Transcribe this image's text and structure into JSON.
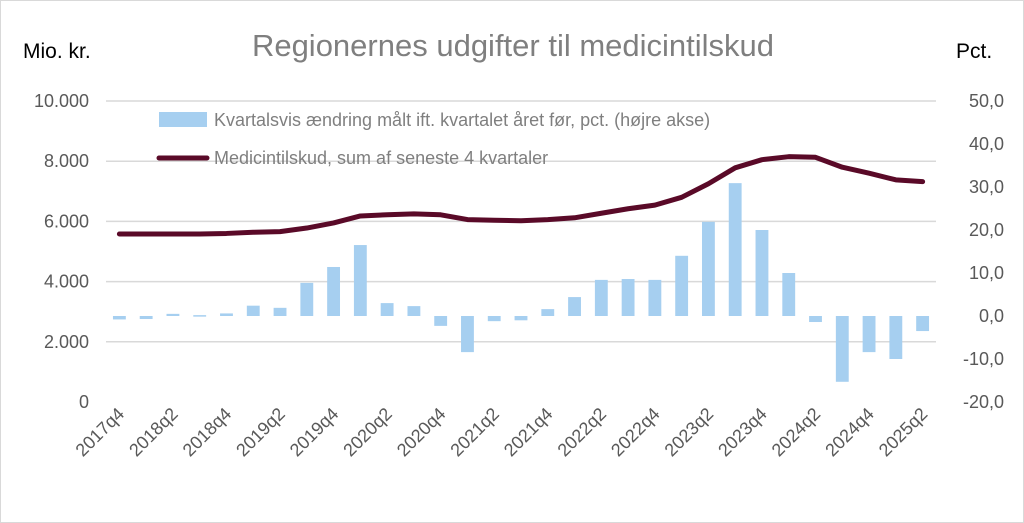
{
  "chart_data": {
    "type": "bar+line",
    "title": "Regionernes udgifter til medicintilskud",
    "ylabel_left": "Mio. kr.",
    "ylabel_right": "Pct.",
    "ylim_left": [
      0,
      10000
    ],
    "ylim_right": [
      -20,
      50
    ],
    "yticks_left": [
      "0",
      "2.000",
      "4.000",
      "6.000",
      "8.000",
      "10.000"
    ],
    "yticks_right": [
      "-20,0",
      "-10,0",
      "0,0",
      "10,0",
      "20,0",
      "30,0",
      "40,0",
      "50,0"
    ],
    "grid": true,
    "legend_position": "top-left",
    "categories": [
      "2017q4",
      "2018q1",
      "2018q2",
      "2018q3",
      "2018q4",
      "2019q1",
      "2019q2",
      "2019q3",
      "2019q4",
      "2020q1",
      "2020q2",
      "2020q3",
      "2020q4",
      "2021q1",
      "2021q2",
      "2021q3",
      "2021q4",
      "2022q1",
      "2022q2",
      "2022q3",
      "2022q4",
      "2023q1",
      "2023q2",
      "2023q3",
      "2023q4",
      "2024q1",
      "2024q2",
      "2024q3",
      "2024q4",
      "2025q1",
      "2025q2"
    ],
    "xtick_labels": [
      "2017q4",
      "2018q2",
      "2018q4",
      "2019q2",
      "2019q4",
      "2020q2",
      "2020q4",
      "2021q2",
      "2021q4",
      "2022q2",
      "2022q4",
      "2023q2",
      "2023q4",
      "2024q2",
      "2024q4",
      "2025q2"
    ],
    "series": [
      {
        "name": "Kvartalsvis ændring målt ift. kvartalet året før, pct. (højre akse)",
        "type": "bar",
        "axis": "right",
        "color": "#a6cff0",
        "values": [
          -0.8,
          -0.7,
          0.5,
          0.2,
          0.6,
          2.4,
          1.9,
          7.7,
          11.4,
          16.5,
          3.0,
          2.3,
          -2.3,
          -8.4,
          -1.2,
          -1.0,
          1.6,
          4.4,
          8.4,
          8.6,
          8.4,
          14.0,
          21.9,
          30.9,
          20.0,
          10.0,
          -1.4,
          -15.3,
          -8.4,
          -10.0,
          -3.5
        ]
      },
      {
        "name": "Medicintilskud, sum af seneste 4 kvartaler",
        "type": "line",
        "axis": "left",
        "color": "#5a0a28",
        "values": [
          5580,
          5580,
          5580,
          5580,
          5600,
          5640,
          5660,
          5780,
          5950,
          6180,
          6220,
          6250,
          6220,
          6060,
          6040,
          6020,
          6060,
          6120,
          6270,
          6420,
          6540,
          6800,
          7250,
          7780,
          8050,
          8150,
          8130,
          7800,
          7600,
          7380,
          7320
        ]
      }
    ]
  }
}
